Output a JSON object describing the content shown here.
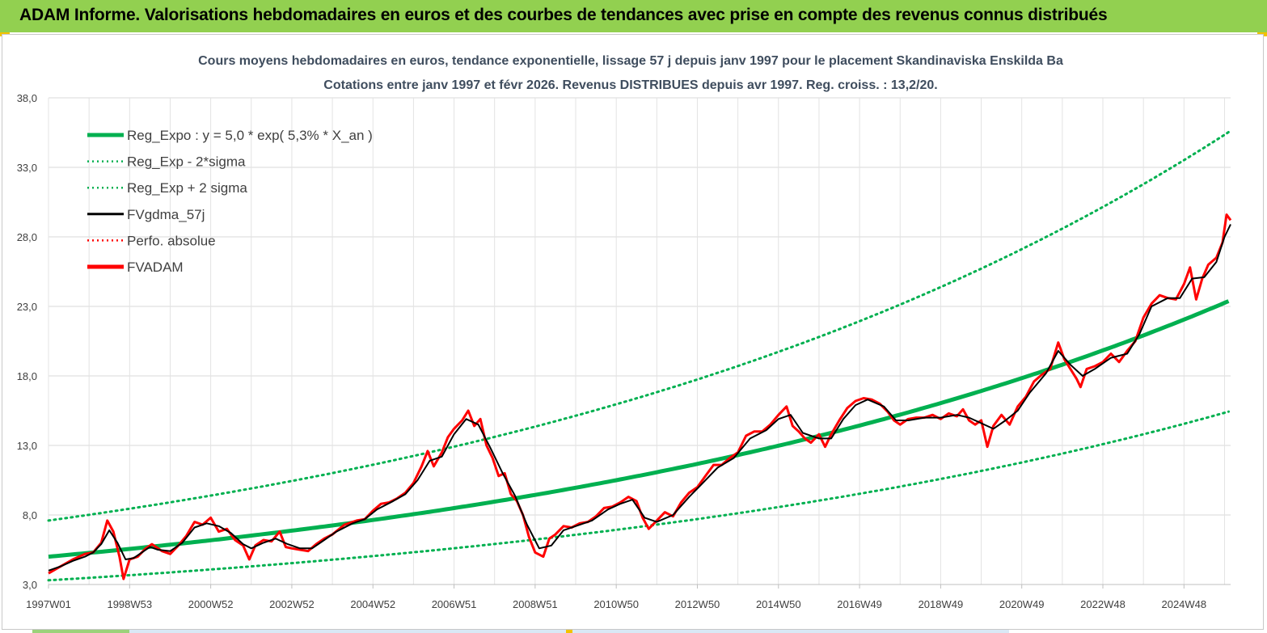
{
  "header": {
    "title": "ADAM Informe. Valorisations hebdomadaires en euros et des courbes de tendances avec prise en compte des revenus connus distribués",
    "background": "#92d050"
  },
  "chart_data": {
    "type": "line",
    "title_line1": "Cours moyens hebdomadaires en euros, tendance exponentielle, lissage 57 j depuis janv 1997  pour le placement Skandinaviska Enskilda Ba",
    "title_line2": "Cotations entre janv 1997  et févr  2026. Revenus DISTRIBUES  depuis avr 1997. Reg. croiss. : 13,2/20.",
    "x_start": 1997.0,
    "x_end": 2026.15,
    "ylim": [
      3.0,
      38.0
    ],
    "y_ticks": [
      "3,0",
      "8,0",
      "13,0",
      "18,0",
      "23,0",
      "28,0",
      "33,0",
      "38,0"
    ],
    "y_tick_values": [
      3,
      8,
      13,
      18,
      23,
      28,
      33,
      38
    ],
    "x_tick_labels": [
      "1997W01",
      "1998W53",
      "2000W52",
      "2002W52",
      "2004W52",
      "2006W51",
      "2008W51",
      "2010W50",
      "2012W50",
      "2014W50",
      "2016W49",
      "2018W49",
      "2020W49",
      "2022W48",
      "2024W48"
    ],
    "x_tick_years": [
      1997.0,
      1999.0,
      2001.0,
      2003.0,
      2005.0,
      2007.0,
      2009.0,
      2011.0,
      2013.0,
      2015.0,
      2017.0,
      2019.0,
      2021.0,
      2023.0,
      2025.0
    ],
    "grid": true,
    "legend_position": "top-left",
    "legend": [
      {
        "key": "reg",
        "label": "Reg_Expo : y = 5,0 * exp( 5,3% *  X_an )",
        "color": "#00b050",
        "style": "solid-thick"
      },
      {
        "key": "low",
        "label": "Reg_Exp - 2*sigma",
        "color": "#00b050",
        "style": "dotted"
      },
      {
        "key": "high",
        "label": "Reg_Exp + 2 sigma",
        "color": "#00b050",
        "style": "dotted"
      },
      {
        "key": "smooth",
        "label": "FVgdma_57j",
        "color": "#000000",
        "style": "solid"
      },
      {
        "key": "perfo",
        "label": "Perfo. absolue",
        "color": "#ff0000",
        "style": "dotted"
      },
      {
        "key": "price",
        "label": "FVADAM",
        "color": "#ff0000",
        "style": "solid-thick"
      }
    ],
    "regression": {
      "a": 5.0,
      "rate": 0.053,
      "sigma_factor_low": 0.66,
      "sigma_factor_high": 1.52
    },
    "series": [
      {
        "name": "FVADAM",
        "points": [
          [
            1997.0,
            3.8
          ],
          [
            1997.3,
            4.3
          ],
          [
            1997.6,
            4.8
          ],
          [
            1997.9,
            5.2
          ],
          [
            1998.1,
            5.3
          ],
          [
            1998.3,
            6.0
          ],
          [
            1998.45,
            7.6
          ],
          [
            1998.6,
            6.8
          ],
          [
            1998.75,
            5.0
          ],
          [
            1998.85,
            3.4
          ],
          [
            1999.0,
            4.8
          ],
          [
            1999.2,
            5.0
          ],
          [
            1999.4,
            5.6
          ],
          [
            1999.55,
            5.9
          ],
          [
            1999.8,
            5.4
          ],
          [
            2000.0,
            5.2
          ],
          [
            2000.2,
            5.8
          ],
          [
            2000.4,
            6.5
          ],
          [
            2000.6,
            7.5
          ],
          [
            2000.8,
            7.3
          ],
          [
            2001.0,
            7.8
          ],
          [
            2001.2,
            6.8
          ],
          [
            2001.4,
            7.0
          ],
          [
            2001.6,
            6.2
          ],
          [
            2001.8,
            5.8
          ],
          [
            2001.95,
            4.8
          ],
          [
            2002.1,
            5.8
          ],
          [
            2002.3,
            6.2
          ],
          [
            2002.5,
            6.1
          ],
          [
            2002.7,
            6.8
          ],
          [
            2002.85,
            5.7
          ],
          [
            2003.0,
            5.6
          ],
          [
            2003.2,
            5.5
          ],
          [
            2003.4,
            5.4
          ],
          [
            2003.6,
            5.9
          ],
          [
            2003.8,
            6.3
          ],
          [
            2004.0,
            6.6
          ],
          [
            2004.3,
            7.3
          ],
          [
            2004.6,
            7.6
          ],
          [
            2004.8,
            7.7
          ],
          [
            2005.0,
            8.3
          ],
          [
            2005.2,
            8.8
          ],
          [
            2005.4,
            8.9
          ],
          [
            2005.6,
            9.2
          ],
          [
            2005.8,
            9.6
          ],
          [
            2006.0,
            10.3
          ],
          [
            2006.2,
            11.5
          ],
          [
            2006.35,
            12.6
          ],
          [
            2006.5,
            11.5
          ],
          [
            2006.7,
            12.5
          ],
          [
            2006.85,
            13.6
          ],
          [
            2007.0,
            14.2
          ],
          [
            2007.2,
            14.8
          ],
          [
            2007.35,
            15.5
          ],
          [
            2007.5,
            14.4
          ],
          [
            2007.65,
            14.9
          ],
          [
            2007.8,
            13.0
          ],
          [
            2007.95,
            12.1
          ],
          [
            2008.1,
            10.8
          ],
          [
            2008.25,
            11.0
          ],
          [
            2008.4,
            9.5
          ],
          [
            2008.55,
            9.0
          ],
          [
            2008.7,
            8.0
          ],
          [
            2008.85,
            6.4
          ],
          [
            2009.0,
            5.3
          ],
          [
            2009.2,
            5.0
          ],
          [
            2009.35,
            6.3
          ],
          [
            2009.5,
            6.6
          ],
          [
            2009.7,
            7.2
          ],
          [
            2009.9,
            7.1
          ],
          [
            2010.1,
            7.4
          ],
          [
            2010.3,
            7.5
          ],
          [
            2010.5,
            7.9
          ],
          [
            2010.7,
            8.5
          ],
          [
            2010.9,
            8.6
          ],
          [
            2011.1,
            8.9
          ],
          [
            2011.3,
            9.3
          ],
          [
            2011.5,
            9.0
          ],
          [
            2011.65,
            7.8
          ],
          [
            2011.8,
            7.0
          ],
          [
            2012.0,
            7.6
          ],
          [
            2012.2,
            8.2
          ],
          [
            2012.4,
            7.9
          ],
          [
            2012.6,
            8.9
          ],
          [
            2012.8,
            9.6
          ],
          [
            2013.0,
            10.0
          ],
          [
            2013.2,
            10.8
          ],
          [
            2013.4,
            11.6
          ],
          [
            2013.6,
            11.6
          ],
          [
            2013.8,
            12.1
          ],
          [
            2014.0,
            12.5
          ],
          [
            2014.2,
            13.7
          ],
          [
            2014.4,
            14.0
          ],
          [
            2014.6,
            14.0
          ],
          [
            2014.8,
            14.5
          ],
          [
            2015.0,
            15.2
          ],
          [
            2015.2,
            15.8
          ],
          [
            2015.35,
            14.4
          ],
          [
            2015.5,
            14.0
          ],
          [
            2015.65,
            13.5
          ],
          [
            2015.8,
            13.2
          ],
          [
            2016.0,
            13.8
          ],
          [
            2016.15,
            12.9
          ],
          [
            2016.3,
            13.8
          ],
          [
            2016.5,
            14.8
          ],
          [
            2016.7,
            15.7
          ],
          [
            2016.9,
            16.2
          ],
          [
            2017.1,
            16.4
          ],
          [
            2017.3,
            16.3
          ],
          [
            2017.5,
            16.0
          ],
          [
            2017.7,
            15.4
          ],
          [
            2017.85,
            14.8
          ],
          [
            2018.0,
            14.5
          ],
          [
            2018.2,
            14.9
          ],
          [
            2018.4,
            15.0
          ],
          [
            2018.6,
            15.0
          ],
          [
            2018.8,
            15.2
          ],
          [
            2019.0,
            14.9
          ],
          [
            2019.2,
            15.3
          ],
          [
            2019.4,
            15.1
          ],
          [
            2019.55,
            15.6
          ],
          [
            2019.7,
            14.8
          ],
          [
            2019.85,
            14.5
          ],
          [
            2020.0,
            14.8
          ],
          [
            2020.15,
            12.9
          ],
          [
            2020.3,
            14.4
          ],
          [
            2020.5,
            15.2
          ],
          [
            2020.7,
            14.5
          ],
          [
            2020.9,
            15.8
          ],
          [
            2021.1,
            16.5
          ],
          [
            2021.3,
            17.6
          ],
          [
            2021.5,
            18.1
          ],
          [
            2021.7,
            18.5
          ],
          [
            2021.9,
            20.4
          ],
          [
            2022.05,
            19.2
          ],
          [
            2022.2,
            18.5
          ],
          [
            2022.35,
            17.8
          ],
          [
            2022.45,
            17.2
          ],
          [
            2022.6,
            18.5
          ],
          [
            2022.8,
            18.7
          ],
          [
            2023.0,
            19.0
          ],
          [
            2023.2,
            19.6
          ],
          [
            2023.4,
            19.0
          ],
          [
            2023.6,
            19.8
          ],
          [
            2023.8,
            20.5
          ],
          [
            2024.0,
            22.2
          ],
          [
            2024.2,
            23.2
          ],
          [
            2024.4,
            23.8
          ],
          [
            2024.6,
            23.6
          ],
          [
            2024.8,
            23.5
          ],
          [
            2025.0,
            24.6
          ],
          [
            2025.15,
            25.8
          ],
          [
            2025.3,
            23.5
          ],
          [
            2025.45,
            25.0
          ],
          [
            2025.6,
            26.0
          ],
          [
            2025.8,
            26.5
          ],
          [
            2025.95,
            27.6
          ],
          [
            2026.05,
            29.6
          ],
          [
            2026.15,
            29.2
          ]
        ]
      },
      {
        "name": "FVgdma_57j",
        "points": [
          [
            1997.0,
            4.0
          ],
          [
            1997.3,
            4.3
          ],
          [
            1997.6,
            4.7
          ],
          [
            1997.9,
            5.0
          ],
          [
            1998.1,
            5.3
          ],
          [
            1998.3,
            5.9
          ],
          [
            1998.5,
            6.9
          ],
          [
            1998.7,
            6.0
          ],
          [
            1998.9,
            4.8
          ],
          [
            1999.1,
            4.9
          ],
          [
            1999.3,
            5.3
          ],
          [
            1999.5,
            5.7
          ],
          [
            1999.7,
            5.5
          ],
          [
            2000.0,
            5.4
          ],
          [
            2000.3,
            6.0
          ],
          [
            2000.6,
            7.1
          ],
          [
            2000.9,
            7.4
          ],
          [
            2001.2,
            7.2
          ],
          [
            2001.5,
            6.7
          ],
          [
            2001.8,
            5.9
          ],
          [
            2002.0,
            5.6
          ],
          [
            2002.3,
            6.0
          ],
          [
            2002.6,
            6.3
          ],
          [
            2002.9,
            5.9
          ],
          [
            2003.2,
            5.6
          ],
          [
            2003.5,
            5.6
          ],
          [
            2003.8,
            6.2
          ],
          [
            2004.1,
            6.8
          ],
          [
            2004.5,
            7.4
          ],
          [
            2004.8,
            7.7
          ],
          [
            2005.1,
            8.4
          ],
          [
            2005.5,
            9.0
          ],
          [
            2005.8,
            9.5
          ],
          [
            2006.1,
            10.5
          ],
          [
            2006.4,
            11.9
          ],
          [
            2006.7,
            12.2
          ],
          [
            2007.0,
            13.8
          ],
          [
            2007.3,
            14.9
          ],
          [
            2007.6,
            14.5
          ],
          [
            2007.9,
            12.8
          ],
          [
            2008.2,
            11.0
          ],
          [
            2008.5,
            9.4
          ],
          [
            2008.8,
            7.3
          ],
          [
            2009.1,
            5.6
          ],
          [
            2009.4,
            5.8
          ],
          [
            2009.7,
            6.9
          ],
          [
            2010.0,
            7.2
          ],
          [
            2010.4,
            7.6
          ],
          [
            2010.8,
            8.4
          ],
          [
            2011.1,
            8.8
          ],
          [
            2011.4,
            9.1
          ],
          [
            2011.7,
            7.8
          ],
          [
            2012.0,
            7.5
          ],
          [
            2012.4,
            8.0
          ],
          [
            2012.8,
            9.3
          ],
          [
            2013.1,
            10.2
          ],
          [
            2013.5,
            11.4
          ],
          [
            2013.9,
            12.1
          ],
          [
            2014.3,
            13.5
          ],
          [
            2014.7,
            14.1
          ],
          [
            2015.0,
            14.9
          ],
          [
            2015.3,
            15.2
          ],
          [
            2015.6,
            13.9
          ],
          [
            2016.0,
            13.5
          ],
          [
            2016.3,
            13.5
          ],
          [
            2016.6,
            14.9
          ],
          [
            2016.9,
            15.9
          ],
          [
            2017.2,
            16.3
          ],
          [
            2017.6,
            15.8
          ],
          [
            2017.9,
            14.8
          ],
          [
            2018.2,
            14.8
          ],
          [
            2018.6,
            15.0
          ],
          [
            2019.0,
            15.0
          ],
          [
            2019.4,
            15.2
          ],
          [
            2019.7,
            15.0
          ],
          [
            2020.0,
            14.6
          ],
          [
            2020.3,
            14.2
          ],
          [
            2020.6,
            14.8
          ],
          [
            2020.9,
            15.5
          ],
          [
            2021.2,
            16.8
          ],
          [
            2021.6,
            18.2
          ],
          [
            2021.9,
            19.8
          ],
          [
            2022.2,
            18.8
          ],
          [
            2022.5,
            18.0
          ],
          [
            2022.8,
            18.5
          ],
          [
            2023.2,
            19.3
          ],
          [
            2023.6,
            19.6
          ],
          [
            2023.9,
            21.0
          ],
          [
            2024.2,
            23.0
          ],
          [
            2024.6,
            23.6
          ],
          [
            2024.9,
            23.6
          ],
          [
            2025.2,
            25.0
          ],
          [
            2025.5,
            25.1
          ],
          [
            2025.8,
            26.2
          ],
          [
            2026.0,
            28.0
          ],
          [
            2026.15,
            28.9
          ]
        ]
      }
    ]
  }
}
